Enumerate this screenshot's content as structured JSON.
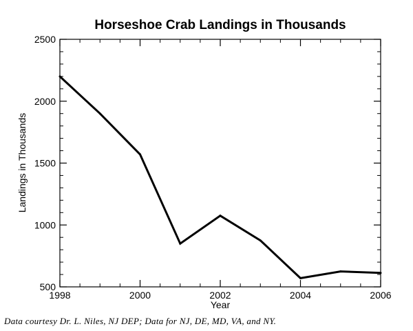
{
  "chart_data": {
    "type": "line",
    "title": "Horseshoe Crab Landings in Thousands",
    "xlabel": "Year",
    "ylabel": "Landings in Thousands",
    "xlim": [
      1998,
      2006
    ],
    "ylim": [
      500,
      2500
    ],
    "xticks": [
      1998,
      2000,
      2002,
      2004,
      2006
    ],
    "yticks": [
      500,
      1000,
      1500,
      2000,
      2500
    ],
    "grid": false,
    "series": [
      {
        "x": [
          1998,
          1999,
          2000,
          2001,
          2002,
          2003,
          2004,
          2005,
          2006
        ],
        "y": [
          2200,
          1900,
          1570,
          850,
          1075,
          875,
          570,
          625,
          613
        ]
      }
    ],
    "colors": {
      "line": "#000000",
      "axis": "#000000"
    }
  },
  "caption": "Data courtesy Dr. L. Niles, NJ DEP; Data for NJ, DE, MD, VA, and NY."
}
